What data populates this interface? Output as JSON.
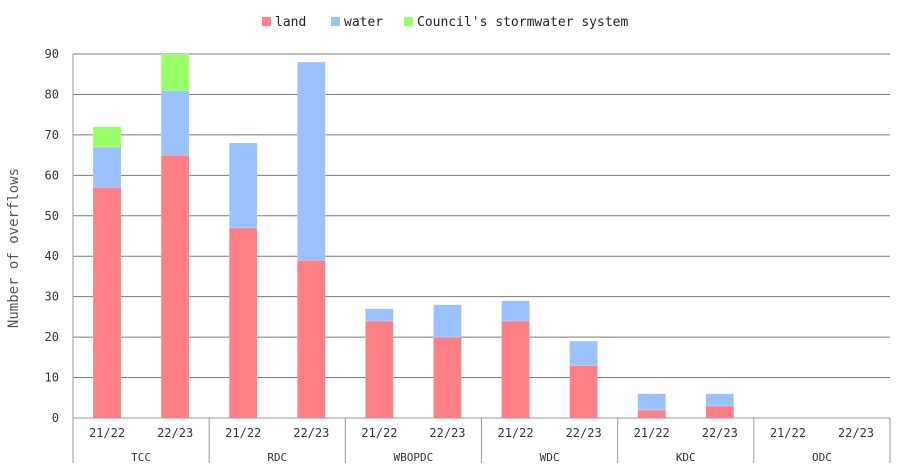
{
  "chart_data": {
    "type": "bar",
    "stacked": true,
    "ylabel": "Number of overflows",
    "ylim": [
      0,
      90
    ],
    "yticks": [
      0,
      10,
      20,
      30,
      40,
      50,
      60,
      70,
      80,
      90
    ],
    "grid": true,
    "legend_position": "top-center",
    "groups": [
      {
        "name": "TCC",
        "categories": [
          "21/22",
          "22/23"
        ]
      },
      {
        "name": "RDC",
        "categories": [
          "21/22",
          "22/23"
        ]
      },
      {
        "name": "WBOPDC",
        "categories": [
          "21/22",
          "22/23"
        ]
      },
      {
        "name": "WDC",
        "categories": [
          "21/22",
          "22/23"
        ]
      },
      {
        "name": "KDC",
        "categories": [
          "21/22",
          "22/23"
        ]
      },
      {
        "name": "ODC",
        "categories": [
          "21/22",
          "22/23"
        ]
      }
    ],
    "series": [
      {
        "name": "land",
        "color": "#ff7f86",
        "values": [
          57,
          65,
          47,
          39,
          24,
          20,
          24,
          13,
          2,
          3,
          0,
          0
        ]
      },
      {
        "name": "water",
        "color": "#99c2ff",
        "values": [
          10,
          16,
          21,
          49,
          3,
          8,
          5,
          6,
          4,
          3,
          0,
          0
        ]
      },
      {
        "name": "Council's stormwater system",
        "color": "#99ff66",
        "values": [
          5,
          9,
          0,
          0,
          0,
          0,
          0,
          0,
          0,
          0,
          0,
          0
        ]
      }
    ]
  }
}
